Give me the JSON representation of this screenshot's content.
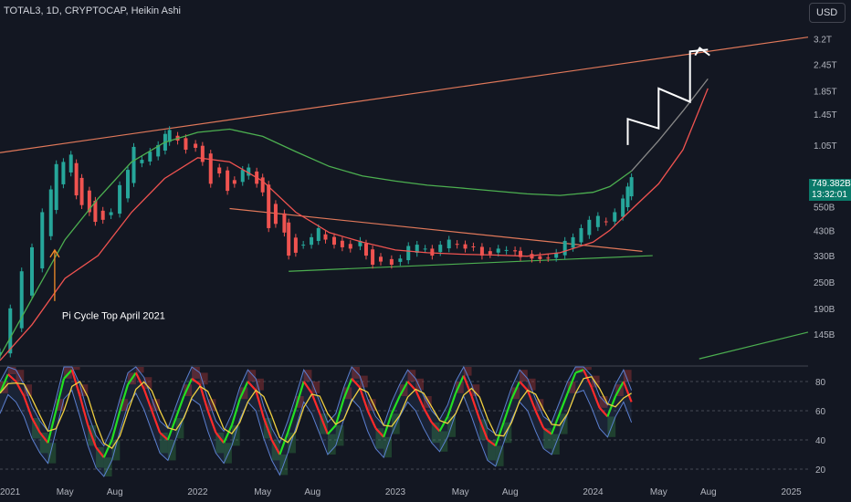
{
  "header": {
    "symbol_title": "TOTAL3, 1D, CRYPTOCAP, Heikin Ashi",
    "currency": "USD"
  },
  "price_tag": {
    "price": "749.382B",
    "countdown": "13:32:01"
  },
  "chart_data": [
    {
      "type": "line",
      "title": "",
      "scale": "log",
      "y_unit": "USD",
      "x_range": [
        "2021-01-01",
        "2025-02-01"
      ],
      "ylim_billion": [
        110,
        3600
      ],
      "y_ticks": [
        "3.2T",
        "2.45T",
        "1.85T",
        "1.45T",
        "1.05T",
        "550B",
        "430B",
        "330B",
        "250B",
        "190B",
        "145B"
      ],
      "y_tick_values_billion": [
        3200,
        2450,
        1850,
        1450,
        1050,
        550,
        430,
        330,
        250,
        190,
        145
      ],
      "x_ticks": [
        "2021",
        "May",
        "Aug",
        "2022",
        "May",
        "Aug",
        "2023",
        "May",
        "Aug",
        "2024",
        "May",
        "Aug",
        "2025"
      ],
      "x_tick_dates": [
        "2021-01-01",
        "2021-05-01",
        "2021-08-01",
        "2022-01-01",
        "2022-05-01",
        "2022-08-01",
        "2023-01-01",
        "2023-05-01",
        "2023-08-01",
        "2024-01-01",
        "2024-05-01",
        "2024-08-01",
        "2025-01-01"
      ],
      "series": [
        {
          "kind": "candles",
          "color_up": "#26a69a",
          "color_down": "#ef5350",
          "points": [
            [
              "2021-01-01",
              120
            ],
            [
              "2021-01-20",
              190
            ],
            [
              "2021-02-10",
              280
            ],
            [
              "2021-03-01",
              360
            ],
            [
              "2021-03-20",
              520
            ],
            [
              "2021-04-05",
              660
            ],
            [
              "2021-04-15",
              860
            ],
            [
              "2021-04-28",
              880
            ],
            [
              "2021-05-12",
              950
            ],
            [
              "2021-05-22",
              620
            ],
            [
              "2021-06-01",
              560
            ],
            [
              "2021-06-15",
              520
            ],
            [
              "2021-06-26",
              470
            ],
            [
              "2021-07-10",
              480
            ],
            [
              "2021-07-25",
              520
            ],
            [
              "2021-08-10",
              690
            ],
            [
              "2021-08-25",
              810
            ],
            [
              "2021-09-05",
              1030
            ],
            [
              "2021-09-20",
              900
            ],
            [
              "2021-10-05",
              980
            ],
            [
              "2021-10-20",
              1050
            ],
            [
              "2021-11-02",
              1180
            ],
            [
              "2021-11-10",
              1230
            ],
            [
              "2021-11-25",
              1100
            ],
            [
              "2021-12-10",
              1000
            ],
            [
              "2021-12-28",
              1020
            ],
            [
              "2022-01-10",
              880
            ],
            [
              "2022-01-25",
              700
            ],
            [
              "2022-02-10",
              780
            ],
            [
              "2022-02-25",
              650
            ],
            [
              "2022-03-10",
              700
            ],
            [
              "2022-03-25",
              810
            ],
            [
              "2022-04-05",
              830
            ],
            [
              "2022-04-20",
              700
            ],
            [
              "2022-05-01",
              640
            ],
            [
              "2022-05-12",
              440
            ],
            [
              "2022-05-25",
              460
            ],
            [
              "2022-06-10",
              420
            ],
            [
              "2022-06-18",
              330
            ],
            [
              "2022-07-01",
              340
            ],
            [
              "2022-07-15",
              370
            ],
            [
              "2022-07-30",
              400
            ],
            [
              "2022-08-12",
              440
            ],
            [
              "2022-08-25",
              390
            ],
            [
              "2022-09-10",
              370
            ],
            [
              "2022-09-25",
              360
            ],
            [
              "2022-10-10",
              355
            ],
            [
              "2022-10-28",
              385
            ],
            [
              "2022-11-08",
              330
            ],
            [
              "2022-11-20",
              300
            ],
            [
              "2022-12-05",
              310
            ],
            [
              "2022-12-25",
              300
            ],
            [
              "2023-01-10",
              320
            ],
            [
              "2023-01-25",
              365
            ],
            [
              "2023-02-10",
              370
            ],
            [
              "2023-02-25",
              355
            ],
            [
              "2023-03-10",
              330
            ],
            [
              "2023-03-25",
              370
            ],
            [
              "2023-04-10",
              390
            ],
            [
              "2023-04-25",
              370
            ],
            [
              "2023-05-10",
              355
            ],
            [
              "2023-05-25",
              360
            ],
            [
              "2023-06-10",
              330
            ],
            [
              "2023-06-25",
              335
            ],
            [
              "2023-07-10",
              355
            ],
            [
              "2023-07-25",
              350
            ],
            [
              "2023-08-10",
              345
            ],
            [
              "2023-08-20",
              325
            ],
            [
              "2023-09-10",
              320
            ],
            [
              "2023-09-25",
              318
            ],
            [
              "2023-10-10",
              322
            ],
            [
              "2023-10-25",
              340
            ],
            [
              "2023-11-10",
              385
            ],
            [
              "2023-11-25",
              400
            ],
            [
              "2023-12-10",
              440
            ],
            [
              "2023-12-25",
              480
            ],
            [
              "2024-01-10",
              500
            ],
            [
              "2024-01-25",
              470
            ],
            [
              "2024-02-10",
              520
            ],
            [
              "2024-02-25",
              600
            ],
            [
              "2024-03-05",
              680
            ],
            [
              "2024-03-12",
              750
            ]
          ]
        },
        {
          "kind": "line",
          "color": "#4caf50",
          "points": [
            [
              "2021-01-01",
              115
            ],
            [
              "2021-03-01",
              210
            ],
            [
              "2021-05-01",
              390
            ],
            [
              "2021-07-01",
              600
            ],
            [
              "2021-09-01",
              880
            ],
            [
              "2021-11-01",
              1080
            ],
            [
              "2022-01-01",
              1200
            ],
            [
              "2022-03-01",
              1240
            ],
            [
              "2022-05-01",
              1150
            ],
            [
              "2022-07-01",
              980
            ],
            [
              "2022-09-01",
              840
            ],
            [
              "2022-11-01",
              760
            ],
            [
              "2023-01-01",
              720
            ],
            [
              "2023-03-01",
              690
            ],
            [
              "2023-05-01",
              670
            ],
            [
              "2023-07-01",
              650
            ],
            [
              "2023-09-01",
              630
            ],
            [
              "2023-11-01",
              620
            ],
            [
              "2024-01-01",
              640
            ],
            [
              "2024-02-01",
              680
            ],
            [
              "2024-03-12",
              800
            ]
          ]
        },
        {
          "kind": "line",
          "color": "#ef5350",
          "points": [
            [
              "2021-01-01",
              110
            ],
            [
              "2021-03-01",
              160
            ],
            [
              "2021-05-01",
              260
            ],
            [
              "2021-07-01",
              330
            ],
            [
              "2021-09-01",
              520
            ],
            [
              "2021-11-01",
              740
            ],
            [
              "2022-01-01",
              920
            ],
            [
              "2022-03-01",
              880
            ],
            [
              "2022-05-01",
              720
            ],
            [
              "2022-07-01",
              520
            ],
            [
              "2022-09-01",
              420
            ],
            [
              "2022-11-01",
              380
            ],
            [
              "2023-01-01",
              350
            ],
            [
              "2023-03-01",
              340
            ],
            [
              "2023-05-01",
              335
            ],
            [
              "2023-07-01",
              332
            ],
            [
              "2023-09-01",
              328
            ],
            [
              "2023-11-01",
              340
            ],
            [
              "2024-01-01",
              380
            ],
            [
              "2024-02-01",
              430
            ],
            [
              "2024-03-12",
              535
            ]
          ]
        },
        {
          "kind": "projection",
          "color": "#888888",
          "points": [
            [
              "2024-03-12",
              800
            ],
            [
              "2024-05-01",
              1100
            ],
            [
              "2024-06-15",
              1500
            ],
            [
              "2024-07-31",
              2100
            ]
          ]
        },
        {
          "kind": "projection",
          "color": "#ef5350",
          "points": [
            [
              "2024-03-12",
              535
            ],
            [
              "2024-05-01",
              700
            ],
            [
              "2024-06-15",
              1000
            ],
            [
              "2024-07-31",
              1900
            ]
          ]
        },
        {
          "kind": "projection-arrow",
          "color": "#ffffff",
          "points": [
            [
              "2024-03-05",
              1050
            ],
            [
              "2024-03-05",
              1380
            ],
            [
              "2024-05-01",
              1250
            ],
            [
              "2024-05-01",
              1900
            ],
            [
              "2024-06-28",
              1650
            ],
            [
              "2024-06-28",
              2800
            ],
            [
              "2024-07-31",
              2850
            ]
          ],
          "arrow_tip": [
            "2024-07-16",
            2900
          ]
        }
      ],
      "trendlines": [
        {
          "name": "upper resistance",
          "color": "#e0785a",
          "from": [
            "2021-01-01",
            970
          ],
          "to": [
            "2025-02-01",
            3250
          ]
        },
        {
          "name": "descending resistance",
          "color": "#e0785a",
          "from": [
            "2022-03-01",
            540
          ],
          "to": [
            "2024-04-01",
            345
          ]
        },
        {
          "name": "support",
          "color": "#4caf50",
          "from": [
            "2022-06-18",
            280
          ],
          "to": [
            "2024-04-20",
            330
          ]
        },
        {
          "name": "lower channel",
          "color": "#4caf50",
          "from": [
            "2024-07-15",
            112
          ],
          "to": [
            "2025-02-01",
            148
          ]
        }
      ],
      "annotations": [
        {
          "text": "Pi Cycle Top April 2021",
          "color": "#ffffff",
          "anchor": [
            "2021-04-12",
            170
          ],
          "arrow_color": "#f28c28",
          "arrow_from": [
            "2021-04-12",
            205
          ],
          "arrow_to": [
            "2021-04-12",
            350
          ]
        }
      ]
    },
    {
      "type": "line",
      "title": "",
      "ylim": [
        15,
        90
      ],
      "y_ticks": [
        80,
        60,
        40,
        20
      ],
      "series": [
        {
          "kind": "band",
          "upper_color": "#2962ff",
          "lower_color": "#2962ff",
          "note": "oscillator bands with red (overbought) and green (oversold) fill",
          "values": [
            72,
            85,
            80,
            70,
            55,
            45,
            38,
            60,
            82,
            88,
            70,
            50,
            35,
            28,
            40,
            60,
            78,
            86,
            75,
            60,
            45,
            40,
            55,
            70,
            82,
            78,
            60,
            45,
            38,
            50,
            68,
            80,
            74,
            55,
            40,
            30,
            45,
            62,
            80,
            72,
            58,
            44,
            50,
            68,
            82,
            76,
            60,
            48,
            42,
            58,
            70,
            80,
            74,
            62,
            52,
            46,
            56,
            72,
            84,
            70,
            54,
            40,
            36,
            52,
            68,
            80,
            74,
            60,
            48,
            44,
            58,
            72,
            86,
            88,
            76,
            62,
            56,
            70,
            80,
            66
          ]
        }
      ]
    }
  ]
}
